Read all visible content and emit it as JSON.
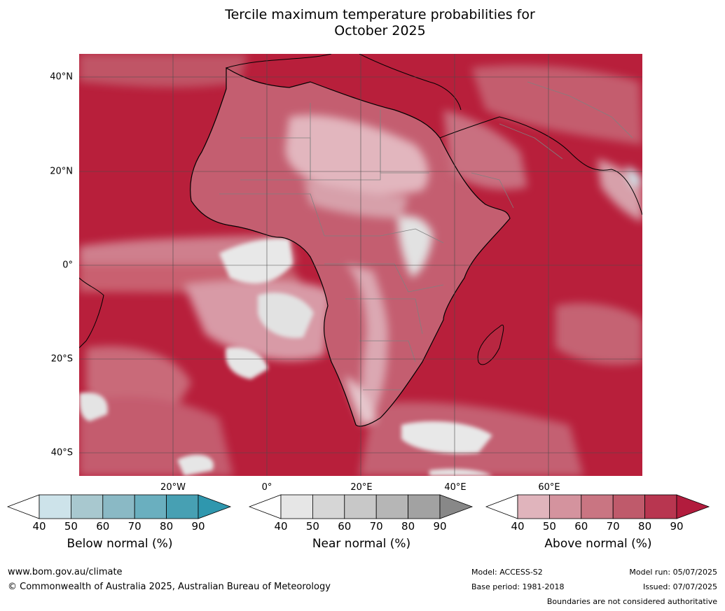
{
  "title_line1": "Tercile maximum temperature probabilities for",
  "title_line2": "October 2025",
  "lat_labels": [
    "40°N",
    "20°N",
    "0°",
    "20°S",
    "40°S"
  ],
  "lon_labels": [
    "20°W",
    "0°",
    "20°E",
    "40°E",
    "60°E"
  ],
  "colorbars": [
    {
      "title": "Below normal (%)",
      "ticks": [
        "40",
        "50",
        "60",
        "70",
        "80",
        "90"
      ],
      "colors": [
        "#ffffff",
        "#cde3ea",
        "#a8c8cf",
        "#8ab9c5",
        "#6aafbf",
        "#47a0b3",
        "#2f97ae"
      ]
    },
    {
      "title": "Near normal (%)",
      "ticks": [
        "40",
        "50",
        "60",
        "70",
        "80",
        "90"
      ],
      "colors": [
        "#ffffff",
        "#e6e6e6",
        "#d6d6d6",
        "#c8c8c8",
        "#b6b6b6",
        "#a2a2a2",
        "#888888"
      ]
    },
    {
      "title": "Above normal (%)",
      "ticks": [
        "40",
        "50",
        "60",
        "70",
        "80",
        "90"
      ],
      "colors": [
        "#ffffff",
        "#e0b4bc",
        "#d4939e",
        "#c97582",
        "#bf5a6b",
        "#b83650",
        "#b21c3d"
      ]
    }
  ],
  "footer": {
    "website": "www.bom.gov.au/climate",
    "copyright": "© Commonwealth of Australia 2025, Australian Bureau of Meteorology",
    "model": "Model: ACCESS-S2",
    "base_period": "Base period: 1981-2018",
    "model_run": "Model run: 05/07/2025",
    "issued": "Issued: 07/07/2025",
    "boundaries": "Boundaries are not considered authoritative"
  }
}
